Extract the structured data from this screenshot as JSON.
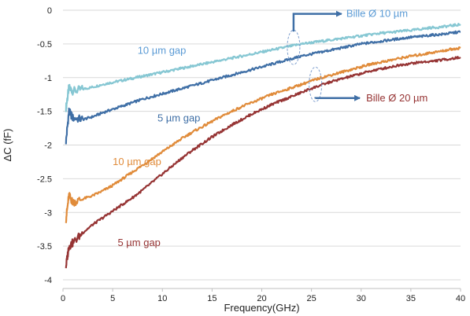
{
  "chart_data": {
    "type": "line",
    "title": "",
    "xlabel": "Frequency(GHz)",
    "ylabel": "ΔC (fF)",
    "xlim": [
      0,
      40
    ],
    "ylim": [
      -4,
      0
    ],
    "xticks": [
      "0",
      "5",
      "10",
      "15",
      "20",
      "25",
      "30",
      "35",
      "40"
    ],
    "yticks": [
      "0",
      "-0.5",
      "-1",
      "-1.5",
      "-2",
      "-2.5",
      "-3",
      "-3.5",
      "-4"
    ],
    "grid": "horizontal",
    "series": [
      {
        "name": "10 µm gap",
        "group": "Bille Ø 10 µm",
        "color": "#86c7d3",
        "x": [
          0.3,
          0.6,
          1,
          2,
          3,
          4,
          5,
          6,
          7,
          8,
          9,
          10,
          11,
          12,
          13,
          14,
          15,
          16,
          17,
          18,
          19,
          20,
          21,
          22,
          23,
          24,
          25,
          26,
          27,
          28,
          29,
          30,
          31,
          32,
          33,
          34,
          35,
          36,
          37,
          38,
          39,
          40
        ],
        "y": [
          -1.45,
          -1.15,
          -1.2,
          -1.17,
          -1.14,
          -1.1,
          -1.07,
          -1.04,
          -1.01,
          -0.98,
          -0.95,
          -0.92,
          -0.89,
          -0.86,
          -0.83,
          -0.8,
          -0.77,
          -0.74,
          -0.71,
          -0.68,
          -0.65,
          -0.62,
          -0.59,
          -0.56,
          -0.53,
          -0.5,
          -0.48,
          -0.46,
          -0.44,
          -0.42,
          -0.4,
          -0.38,
          -0.36,
          -0.34,
          -0.33,
          -0.31,
          -0.3,
          -0.28,
          -0.26,
          -0.25,
          -0.23,
          -0.21
        ]
      },
      {
        "name": "5 µm gap",
        "group": "Bille Ø 10 µm",
        "color": "#3f6fa6",
        "x": [
          0.3,
          0.6,
          1,
          2,
          3,
          4,
          5,
          6,
          7,
          8,
          9,
          10,
          11,
          12,
          13,
          14,
          15,
          16,
          17,
          18,
          19,
          20,
          21,
          22,
          23,
          24,
          25,
          26,
          27,
          28,
          29,
          30,
          31,
          32,
          33,
          34,
          35,
          36,
          37,
          38,
          39,
          40
        ],
        "y": [
          -1.95,
          -1.5,
          -1.6,
          -1.62,
          -1.58,
          -1.52,
          -1.47,
          -1.42,
          -1.37,
          -1.32,
          -1.28,
          -1.24,
          -1.2,
          -1.16,
          -1.12,
          -1.08,
          -1.04,
          -1.0,
          -0.96,
          -0.92,
          -0.88,
          -0.84,
          -0.8,
          -0.76,
          -0.72,
          -0.68,
          -0.65,
          -0.62,
          -0.59,
          -0.56,
          -0.53,
          -0.5,
          -0.48,
          -0.46,
          -0.44,
          -0.42,
          -0.4,
          -0.39,
          -0.37,
          -0.36,
          -0.34,
          -0.32
        ]
      },
      {
        "name": "10 µm gap",
        "group": "Bille Ø 20 µm",
        "color": "#e08b3a",
        "x": [
          0.3,
          0.6,
          1,
          2,
          3,
          4,
          5,
          6,
          7,
          8,
          9,
          10,
          11,
          12,
          13,
          14,
          15,
          16,
          17,
          18,
          19,
          20,
          21,
          22,
          23,
          24,
          25,
          26,
          27,
          28,
          29,
          30,
          31,
          32,
          33,
          34,
          35,
          36,
          37,
          38,
          39,
          40
        ],
        "y": [
          -3.1,
          -2.75,
          -2.85,
          -2.8,
          -2.75,
          -2.68,
          -2.6,
          -2.5,
          -2.4,
          -2.3,
          -2.2,
          -2.1,
          -2.0,
          -1.9,
          -1.81,
          -1.73,
          -1.65,
          -1.57,
          -1.5,
          -1.43,
          -1.37,
          -1.31,
          -1.25,
          -1.2,
          -1.15,
          -1.1,
          -1.05,
          -1.0,
          -0.96,
          -0.92,
          -0.88,
          -0.84,
          -0.8,
          -0.77,
          -0.74,
          -0.71,
          -0.68,
          -0.66,
          -0.63,
          -0.61,
          -0.58,
          -0.56
        ]
      },
      {
        "name": "5 µm gap",
        "group": "Bille Ø 20 µm",
        "color": "#963434",
        "x": [
          0.3,
          0.6,
          1,
          2,
          3,
          4,
          5,
          6,
          7,
          8,
          9,
          10,
          11,
          12,
          13,
          14,
          15,
          16,
          17,
          18,
          19,
          20,
          21,
          22,
          23,
          24,
          25,
          26,
          27,
          28,
          29,
          30,
          31,
          32,
          33,
          34,
          35,
          36,
          37,
          38,
          39,
          40
        ],
        "y": [
          -3.8,
          -3.5,
          -3.45,
          -3.3,
          -3.18,
          -3.08,
          -2.98,
          -2.88,
          -2.78,
          -2.67,
          -2.55,
          -2.43,
          -2.31,
          -2.19,
          -2.08,
          -1.98,
          -1.88,
          -1.79,
          -1.7,
          -1.62,
          -1.54,
          -1.47,
          -1.4,
          -1.34,
          -1.28,
          -1.22,
          -1.16,
          -1.11,
          -1.06,
          -1.02,
          -0.98,
          -0.94,
          -0.9,
          -0.87,
          -0.84,
          -0.81,
          -0.79,
          -0.77,
          -0.76,
          -0.74,
          -0.72,
          -0.7
        ]
      }
    ],
    "annotations": [
      {
        "id": "label-10um-gap-top",
        "text": "10 µm gap",
        "color": "#5b9bd5",
        "x": 7.5,
        "y": -0.65
      },
      {
        "id": "label-5um-gap-top",
        "text": "5 µm gap",
        "color": "#3f6fa6",
        "x": 9.5,
        "y": -1.65
      },
      {
        "id": "label-10um-gap-bottom",
        "text": "10 µm gap",
        "color": "#e08b3a",
        "x": 5,
        "y": -2.3
      },
      {
        "id": "label-5um-gap-bottom",
        "text": "5 µm gap",
        "color": "#963434",
        "x": 5.5,
        "y": -3.5
      }
    ],
    "callouts": [
      {
        "id": "callout-bille-10",
        "text": "Bille Ø 10 µm",
        "color": "#5b9bd5",
        "arrow_color": "#3f6fa6",
        "ellipse_x": 23.2,
        "ellipse_y": -0.55,
        "text_x": 28.5,
        "text_y": -0.1
      },
      {
        "id": "callout-bille-20",
        "text": "Bille Ø 20 µm",
        "color": "#963434",
        "arrow_color": "#3f6fa6",
        "ellipse_x": 25.4,
        "ellipse_y": -1.1,
        "text_x": 30.5,
        "text_y": -1.35
      }
    ]
  }
}
